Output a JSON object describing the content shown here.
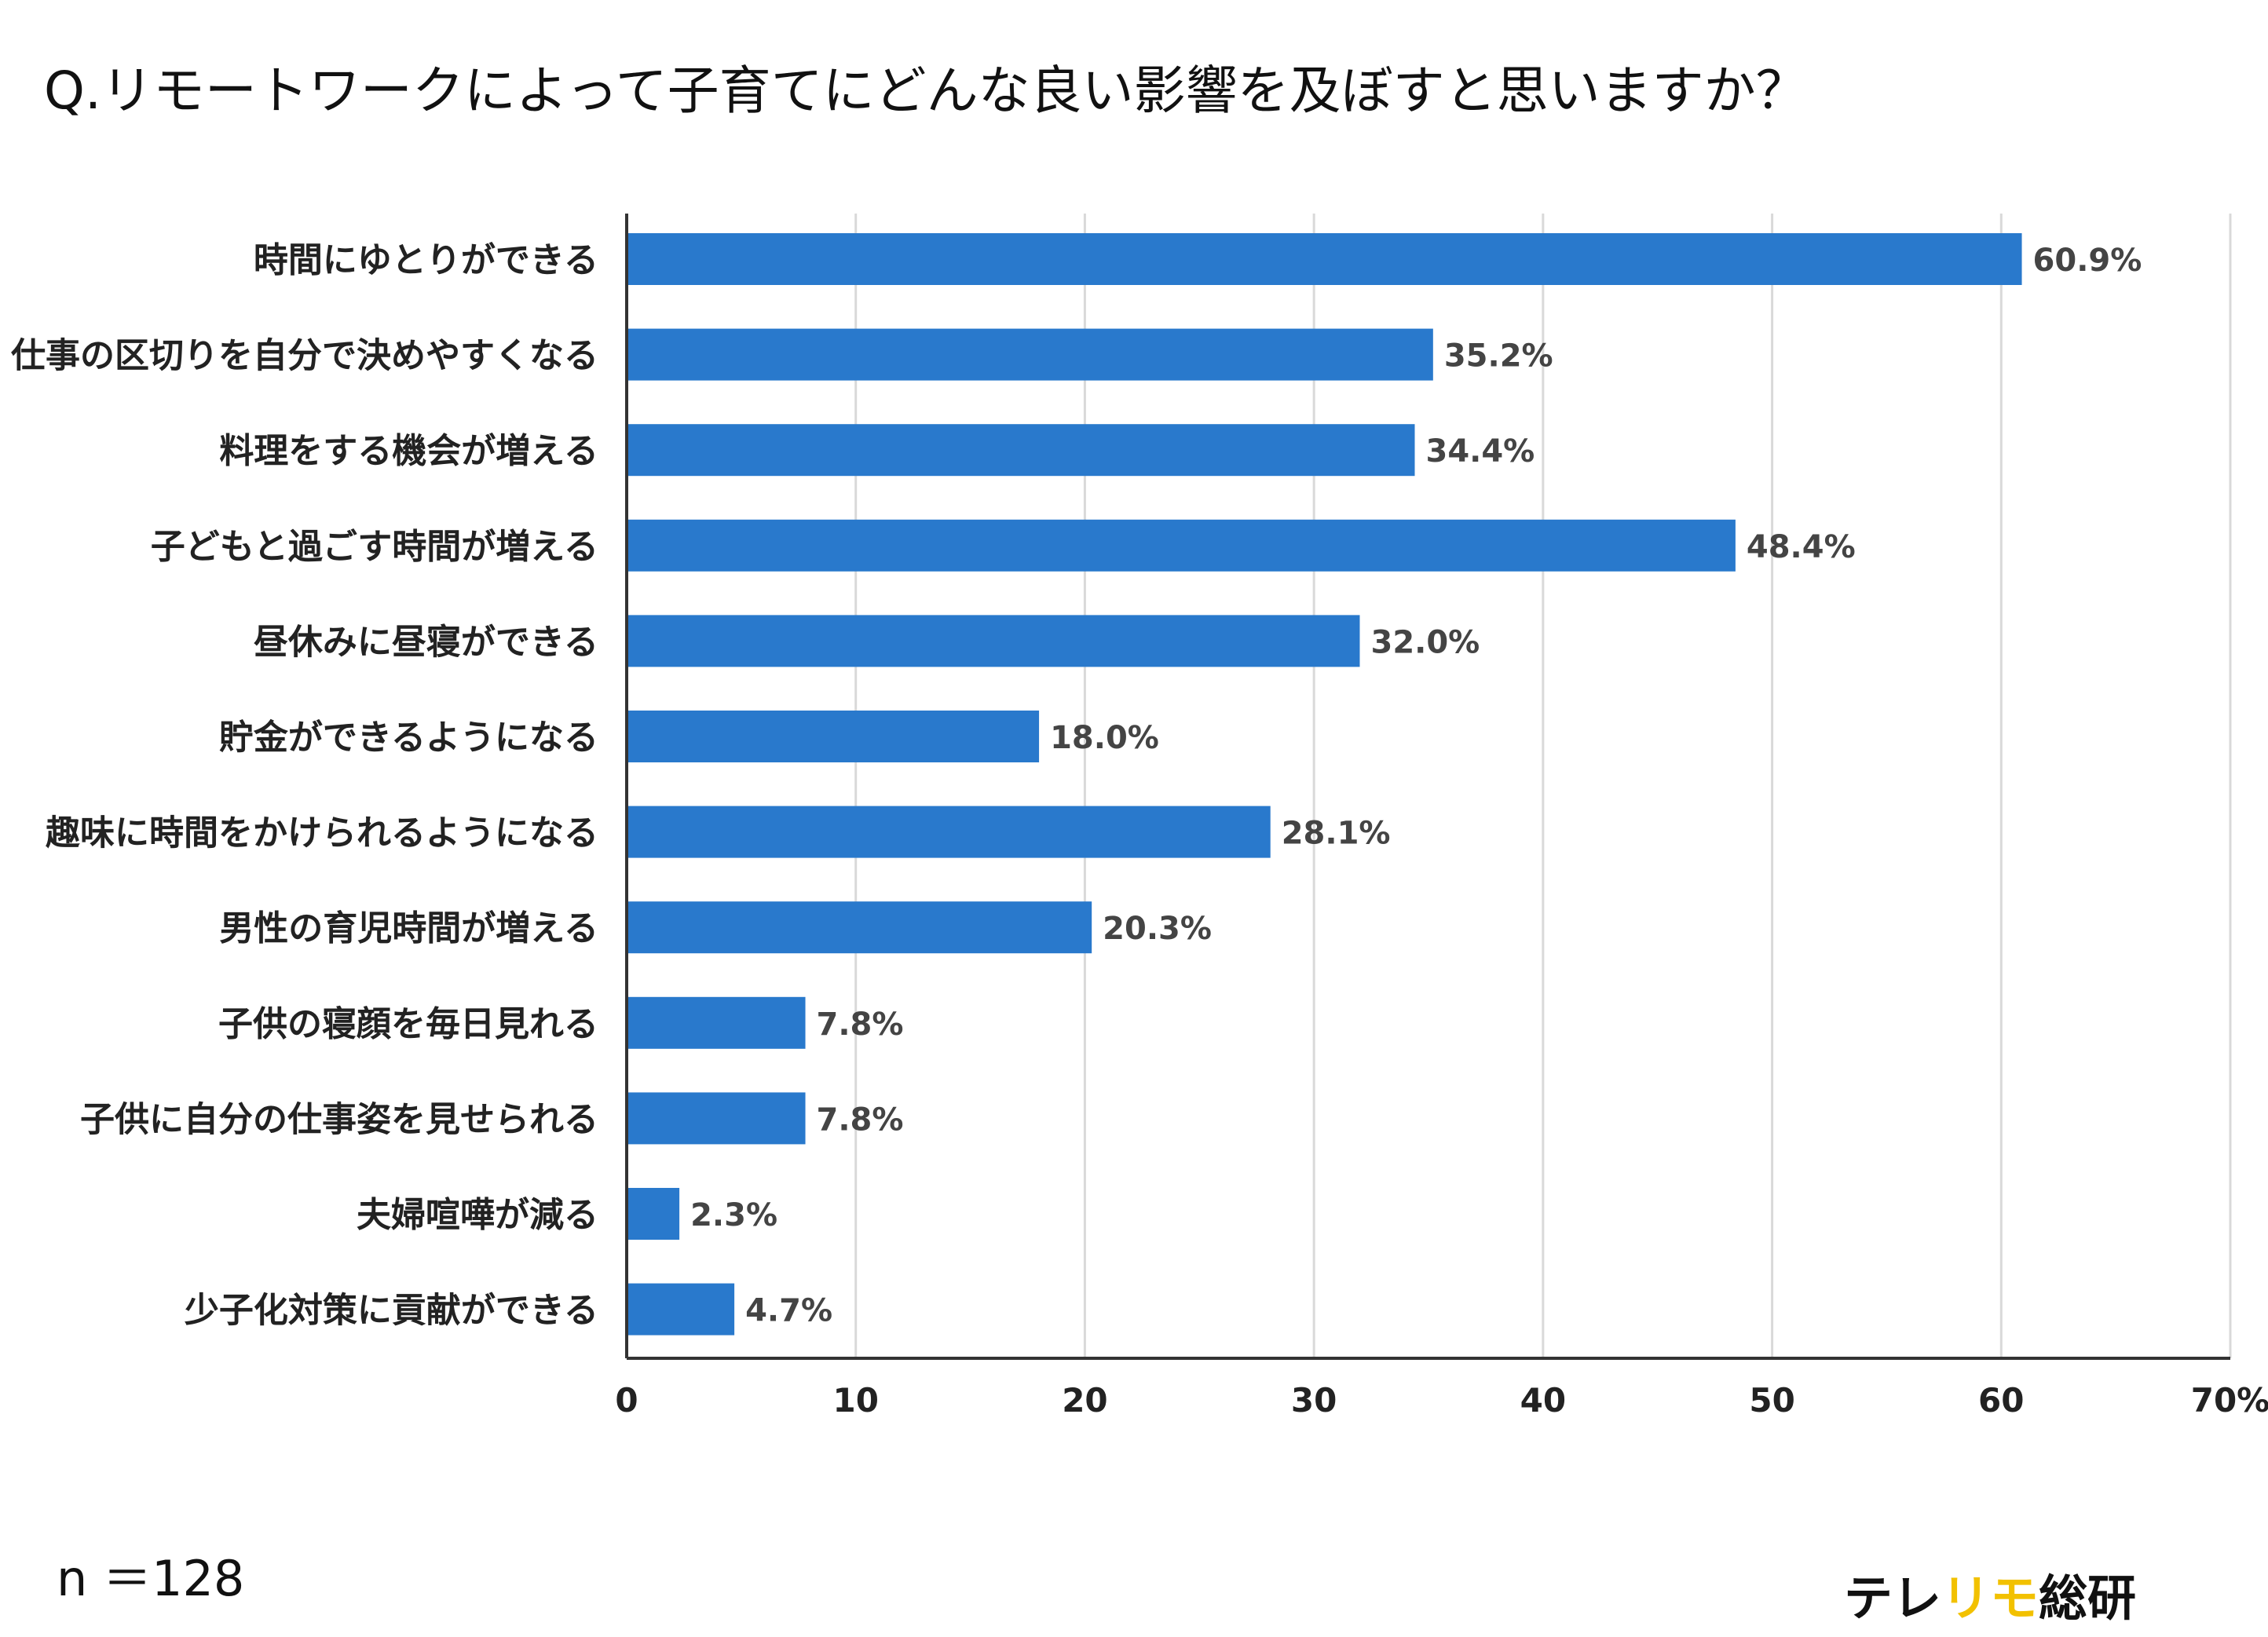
{
  "title": "Q.リモートワークによって子育てにどんな良い影響を及ぼすと思いますか？",
  "sample_size": "n ＝128",
  "brand": {
    "part1": "テレ",
    "part2": "リモ",
    "part3": "総研"
  },
  "colors": {
    "bar": "#2979cc",
    "accent": "#f2c100",
    "grid": "#d9d9d9",
    "axis": "#333333"
  },
  "chart_data": {
    "type": "bar",
    "orientation": "horizontal",
    "categories": [
      "時間にゆとりができる",
      "仕事の区切りを自分で決めやすくなる",
      "料理をする機会が増える",
      "子どもと過ごす時間が増える",
      "昼休みに昼寝ができる",
      "貯金ができるようになる",
      "趣味に時間をかけられるようになる",
      "男性の育児時間が増える",
      "子供の寝顔を毎日見れる",
      "子供に自分の仕事姿を見せられる",
      "夫婦喧嘩が減る",
      "少子化対策に貢献ができる"
    ],
    "values": [
      60.9,
      35.2,
      34.4,
      48.4,
      32.0,
      18.0,
      28.1,
      20.3,
      7.8,
      7.8,
      2.3,
      4.7
    ],
    "value_labels": [
      "60.9%",
      "35.2%",
      "34.4%",
      "48.4%",
      "32.0%",
      "18.0%",
      "28.1%",
      "20.3%",
      "7.8%",
      "7.8%",
      "2.3%",
      "4.7%"
    ],
    "xlim": [
      0,
      70
    ],
    "xticks": [
      0,
      10,
      20,
      30,
      40,
      50,
      60,
      70
    ],
    "xtick_labels": [
      "0",
      "10",
      "20",
      "30",
      "40",
      "50",
      "60",
      "70%"
    ],
    "grid": true
  }
}
